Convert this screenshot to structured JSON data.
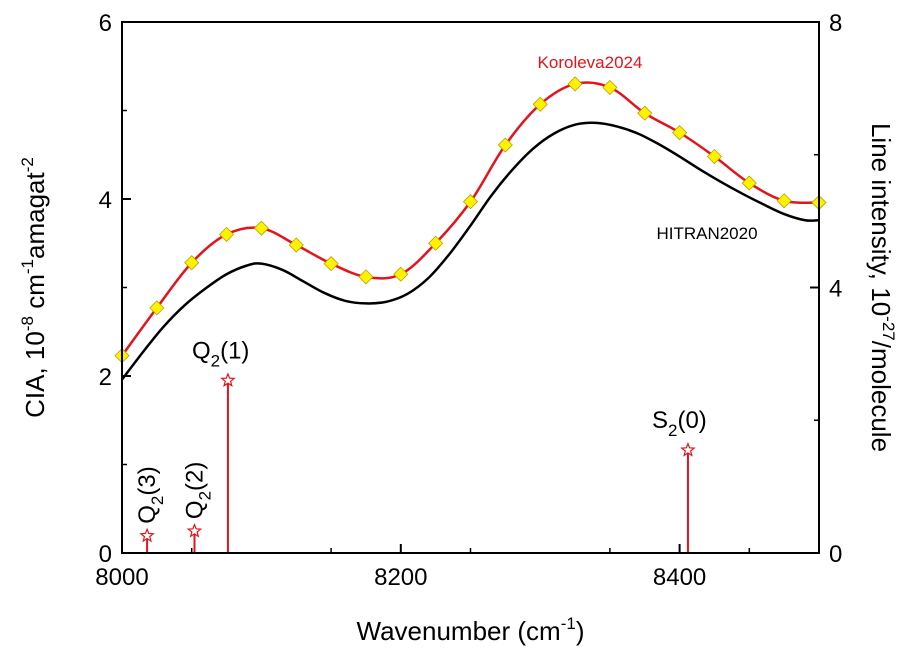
{
  "chart_data": {
    "type": "line",
    "xlabel": {
      "main": "Wavenumber (cm",
      "sup": "-1",
      "tail": ")"
    },
    "ylabel_left": {
      "a": "CIA, 10",
      "sup1": "-8",
      "b": " cm",
      "sup2": "-1",
      "c": "amagat",
      "sup3": "-2"
    },
    "ylabel_right": {
      "a": "Line intensity, 10",
      "sup": "-27",
      "b": "/molecule"
    },
    "xlim": [
      8000,
      8500
    ],
    "ylim_left": [
      0,
      6
    ],
    "ylim_right": [
      0,
      8
    ],
    "xticks": [
      8000,
      8200,
      8400
    ],
    "xtick_labels": [
      "8000",
      "8200",
      "8400"
    ],
    "yticks_left": [
      0,
      2,
      4,
      6
    ],
    "ytick_left_labels": [
      "0",
      "2",
      "4",
      "6"
    ],
    "yticks_right": [
      0,
      4,
      8
    ],
    "ytick_right_labels": [
      "0",
      "4",
      "8"
    ],
    "series": [
      {
        "name": "HITRAN2020",
        "color": "#000000",
        "marker": "none",
        "x": [
          8000,
          8015,
          8030,
          8045,
          8060,
          8075,
          8090,
          8100,
          8115,
          8130,
          8145,
          8160,
          8175,
          8190,
          8205,
          8220,
          8235,
          8250,
          8265,
          8280,
          8295,
          8310,
          8325,
          8340,
          8355,
          8370,
          8385,
          8400,
          8415,
          8430,
          8445,
          8460,
          8475,
          8490,
          8500
        ],
        "values": [
          1.96,
          2.27,
          2.56,
          2.8,
          2.99,
          3.15,
          3.25,
          3.27,
          3.2,
          3.07,
          2.94,
          2.85,
          2.82,
          2.84,
          2.93,
          3.11,
          3.38,
          3.7,
          4.04,
          4.33,
          4.57,
          4.74,
          4.84,
          4.86,
          4.82,
          4.74,
          4.62,
          4.48,
          4.33,
          4.19,
          4.06,
          3.94,
          3.83,
          3.76,
          3.76
        ]
      },
      {
        "name": "Koroleva2024",
        "color": "#e3141b",
        "marker": "diamond",
        "marker_color": "#fff200",
        "x": [
          8000,
          8025,
          8050,
          8075,
          8100,
          8125,
          8150,
          8175,
          8200,
          8225,
          8250,
          8275,
          8300,
          8325,
          8350,
          8375,
          8400,
          8425,
          8450,
          8475,
          8500
        ],
        "values": [
          2.23,
          2.77,
          3.28,
          3.6,
          3.67,
          3.48,
          3.27,
          3.12,
          3.15,
          3.5,
          3.97,
          4.61,
          5.07,
          5.3,
          5.26,
          4.97,
          4.75,
          4.48,
          4.18,
          3.98,
          3.96
        ]
      }
    ],
    "lines": {
      "axis": "right",
      "color": "#e3141b",
      "marker": "star",
      "items": [
        {
          "x": 8018,
          "value": 0.26,
          "label": "Q",
          "sub": "2",
          "paren": "(3)",
          "rotated": true
        },
        {
          "x": 8052,
          "value": 0.33,
          "label": "Q",
          "sub": "2",
          "paren": "(2)",
          "rotated": true
        },
        {
          "x": 8076,
          "value": 2.6,
          "label": "Q",
          "sub": "2",
          "paren": "(1)",
          "rotated": false
        },
        {
          "x": 8406,
          "value": 1.55,
          "label": "S",
          "sub": "2",
          "paren": "(0)",
          "rotated": false
        }
      ]
    }
  }
}
